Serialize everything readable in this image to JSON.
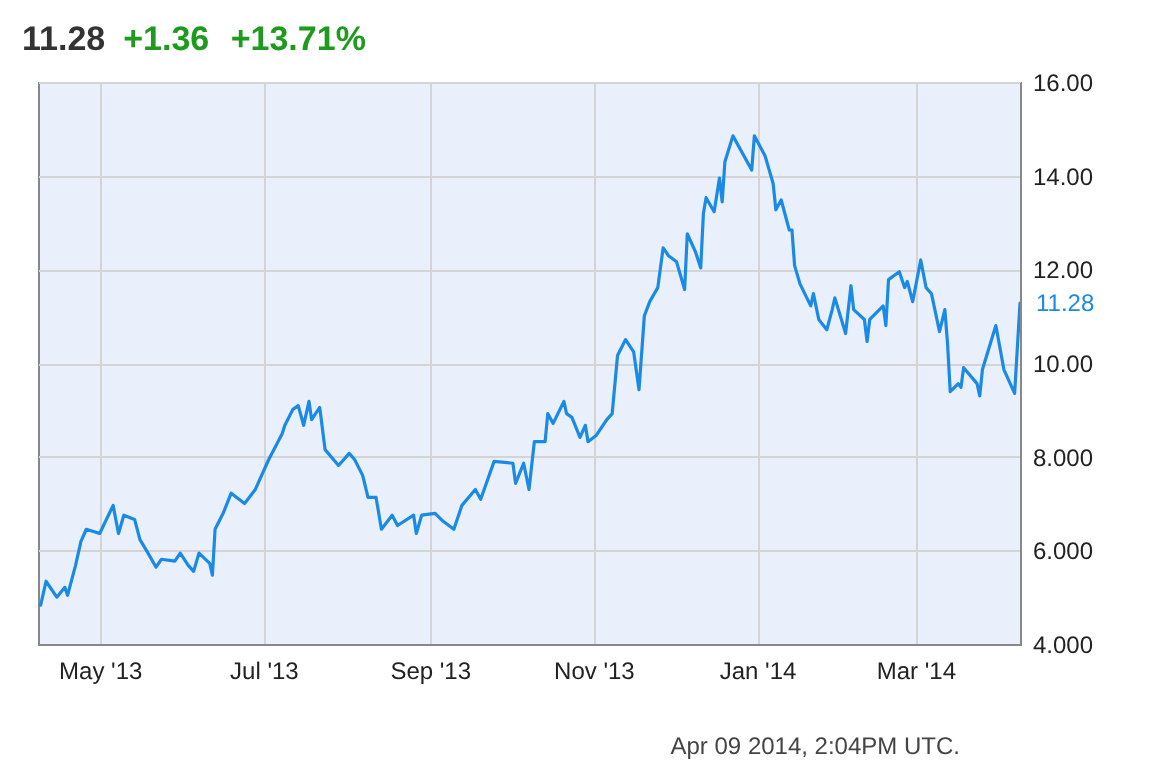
{
  "chart_data": {
    "type": "line",
    "title": "11.28",
    "subtitle": "+1.36 +13.71%",
    "annotations": [
      {
        "text": "11.28",
        "x": "2014-04-09",
        "y": 11.28
      },
      "Apr 09 2014, 2:04PM UTC."
    ],
    "x": [
      "2013-04-09",
      "2013-04-11",
      "2013-04-15",
      "2013-04-18",
      "2013-04-19",
      "2013-04-22",
      "2013-04-24",
      "2013-04-26",
      "2013-05-01",
      "2013-05-06",
      "2013-05-08",
      "2013-05-10",
      "2013-05-14",
      "2013-05-16",
      "2013-05-19",
      "2013-05-22",
      "2013-05-24",
      "2013-05-29",
      "2013-05-31",
      "2013-06-03",
      "2013-06-05",
      "2013-06-07",
      "2013-06-11",
      "2013-06-12",
      "2013-06-13",
      "2013-06-16",
      "2013-06-19",
      "2013-06-24",
      "2013-06-28",
      "2013-07-03",
      "2013-07-08",
      "2013-07-09",
      "2013-07-12",
      "2013-07-14",
      "2013-07-16",
      "2013-07-18",
      "2013-07-19",
      "2013-07-22",
      "2013-07-24",
      "2013-07-29",
      "2013-08-02",
      "2013-08-04",
      "2013-08-07",
      "2013-08-09",
      "2013-08-12",
      "2013-08-14",
      "2013-08-18",
      "2013-08-20",
      "2013-08-26",
      "2013-08-27",
      "2013-08-29",
      "2013-09-03",
      "2013-09-06",
      "2013-09-10",
      "2013-09-13",
      "2013-09-18",
      "2013-09-20",
      "2013-09-25",
      "2013-10-02",
      "2013-10-03",
      "2013-10-06",
      "2013-10-08",
      "2013-10-10",
      "2013-10-14",
      "2013-10-15",
      "2013-10-17",
      "2013-10-21",
      "2013-10-22",
      "2013-10-24",
      "2013-10-27",
      "2013-10-29",
      "2013-10-30",
      "2013-11-02",
      "2013-11-06",
      "2013-11-08",
      "2013-11-10",
      "2013-11-13",
      "2013-11-16",
      "2013-11-18",
      "2013-11-20",
      "2013-11-22",
      "2013-11-25",
      "2013-11-27",
      "2013-11-29",
      "2013-12-02",
      "2013-12-05",
      "2013-12-06",
      "2013-12-09",
      "2013-12-11",
      "2013-12-12",
      "2013-12-13",
      "2013-12-16",
      "2013-12-18",
      "2013-12-19",
      "2013-12-20",
      "2013-12-23",
      "2013-12-30",
      "2013-12-31",
      "2014-01-04",
      "2014-01-07",
      "2014-01-08",
      "2014-01-10",
      "2014-01-13",
      "2014-01-14",
      "2014-01-15",
      "2014-01-17",
      "2014-01-21",
      "2014-01-22",
      "2014-01-24",
      "2014-01-27",
      "2014-01-29",
      "2014-01-30",
      "2014-02-03",
      "2014-02-05",
      "2014-02-06",
      "2014-02-10",
      "2014-02-11",
      "2014-02-12",
      "2014-02-17",
      "2014-02-18",
      "2014-02-19",
      "2014-02-23",
      "2014-02-25",
      "2014-02-26",
      "2014-02-28",
      "2014-03-03",
      "2014-03-05",
      "2014-03-07",
      "2014-03-10",
      "2014-03-12",
      "2014-03-13",
      "2014-03-14",
      "2014-03-17",
      "2014-03-18",
      "2014-03-19",
      "2014-03-24",
      "2014-03-25",
      "2014-03-26",
      "2014-03-31",
      "2014-04-03",
      "2014-04-07",
      "2014-04-09"
    ],
    "series": [
      {
        "color": "#1a8ae5",
        "values": [
          4.83,
          5.34,
          5.0,
          5.21,
          5.04,
          5.68,
          6.19,
          6.45,
          6.36,
          6.96,
          6.36,
          6.75,
          6.66,
          6.23,
          5.94,
          5.64,
          5.81,
          5.77,
          5.94,
          5.68,
          5.55,
          5.94,
          5.72,
          5.47,
          6.45,
          6.79,
          7.22,
          7.0,
          7.3,
          7.94,
          8.49,
          8.67,
          9.01,
          9.09,
          8.67,
          9.18,
          8.79,
          9.05,
          8.15,
          7.81,
          8.07,
          7.94,
          7.6,
          7.13,
          7.13,
          6.45,
          6.75,
          6.53,
          6.75,
          6.36,
          6.75,
          6.79,
          6.62,
          6.45,
          6.96,
          7.3,
          7.09,
          7.9,
          7.86,
          7.43,
          7.86,
          7.3,
          8.32,
          8.32,
          8.92,
          8.71,
          9.18,
          8.92,
          8.84,
          8.41,
          8.67,
          8.32,
          8.45,
          8.79,
          8.92,
          10.16,
          10.5,
          10.24,
          9.43,
          11.01,
          11.31,
          11.61,
          12.46,
          12.29,
          12.16,
          11.57,
          12.76,
          12.38,
          12.03,
          13.19,
          13.53,
          13.23,
          13.95,
          13.44,
          14.29,
          14.85,
          14.12,
          14.85,
          14.42,
          13.83,
          13.27,
          13.48,
          12.84,
          12.84,
          12.08,
          11.69,
          11.22,
          11.48,
          10.93,
          10.71,
          11.14,
          11.39,
          10.63,
          11.65,
          11.14,
          10.93,
          10.46,
          10.93,
          11.22,
          10.8,
          11.78,
          11.95,
          11.61,
          11.74,
          11.31,
          12.2,
          11.61,
          11.48,
          10.67,
          11.14,
          10.41,
          9.39,
          9.56,
          9.48,
          9.9,
          9.56,
          9.3,
          9.86,
          10.8,
          9.86,
          9.35,
          11.28
        ]
      }
    ],
    "xlim": [
      "2013-04-08",
      "2014-04-09"
    ],
    "xticks": [
      {
        "value": "2013-05-01",
        "label": "May '13"
      },
      {
        "value": "2013-07-01",
        "label": "Jul '13"
      },
      {
        "value": "2013-09-01",
        "label": "Sep '13"
      },
      {
        "value": "2013-11-01",
        "label": "Nov '13"
      },
      {
        "value": "2014-01-01",
        "label": "Jan '14"
      },
      {
        "value": "2014-03-01",
        "label": "Mar '14"
      }
    ],
    "ylim": [
      4,
      16
    ],
    "yticks": [
      {
        "value": 4,
        "label": "4.000"
      },
      {
        "value": 6,
        "label": "6.000"
      },
      {
        "value": 8,
        "label": "8.000"
      },
      {
        "value": 10,
        "label": "10.00"
      },
      {
        "value": 12,
        "label": "12.00"
      },
      {
        "value": 14,
        "label": "14.00"
      },
      {
        "value": 16,
        "label": "16.00"
      }
    ],
    "grid": true,
    "marker": "none",
    "line_style": "solid"
  }
}
